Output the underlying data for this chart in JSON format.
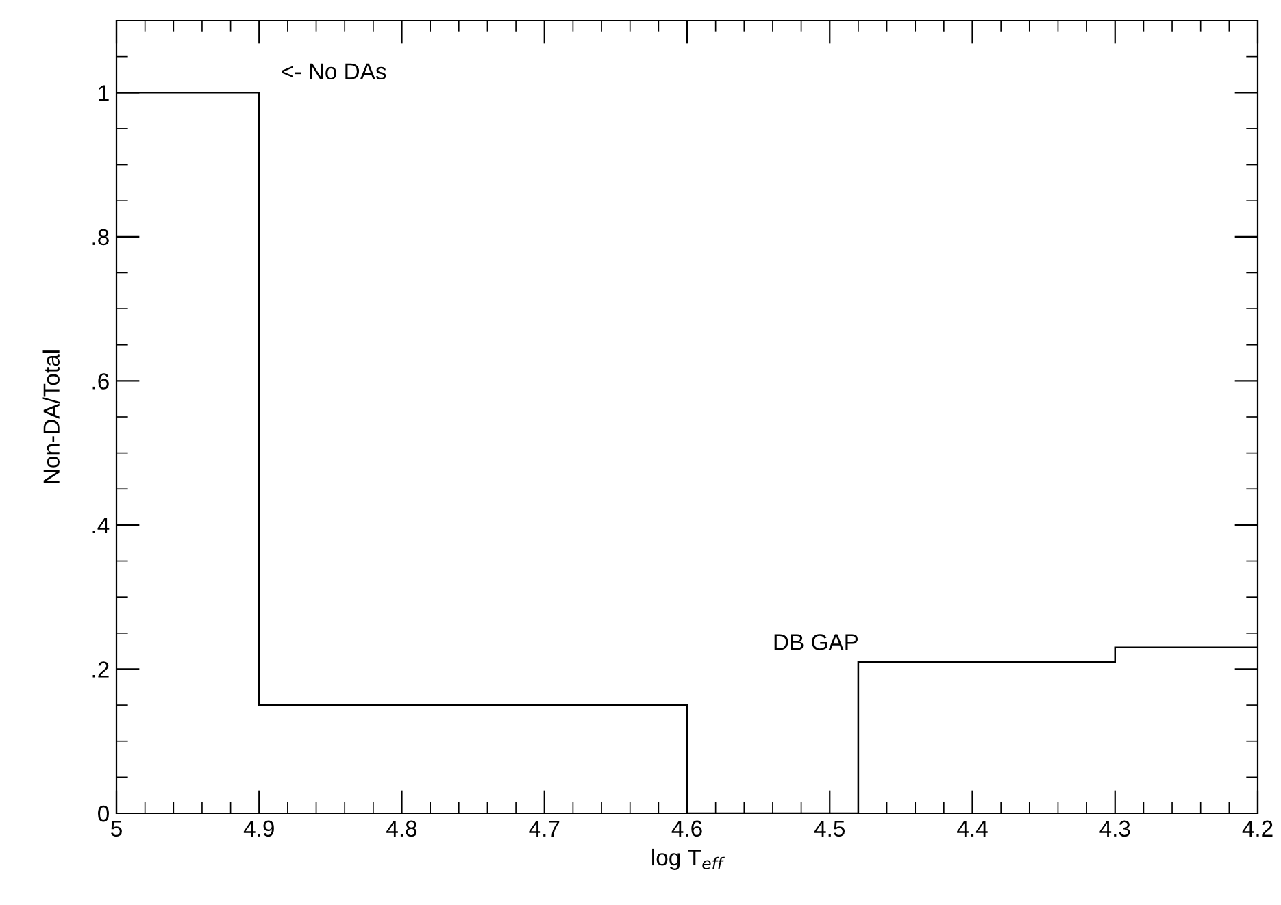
{
  "chart_data": {
    "type": "histogram",
    "xlabel": "log T$_{eff}$",
    "ylabel": "Non-DA/Total",
    "bins": [
      5,
      4.9,
      4.6,
      4.48,
      4.3,
      4.2
    ],
    "values": [
      1,
      0.15,
      0,
      0.21,
      0.23
    ],
    "color": "#000000",
    "xlim": [
      5,
      4.2
    ],
    "xticks": [
      5,
      4.9,
      4.8,
      4.7,
      4.6,
      4.5,
      4.4,
      4.3,
      4.2
    ],
    "ylim": [
      0,
      1.1
    ],
    "yticks": [
      {
        "value": 0,
        "label": "0"
      },
      {
        "value": 0.2,
        "label": ".2"
      },
      {
        "value": 0.4,
        "label": ".4"
      },
      {
        "value": 0.6,
        "label": ".6"
      },
      {
        "value": 0.8,
        "label": ".8"
      },
      {
        "value": 1,
        "label": "1"
      }
    ],
    "annotations": [
      "<- No DAs",
      "DB GAP"
    ],
    "grid": false
  }
}
